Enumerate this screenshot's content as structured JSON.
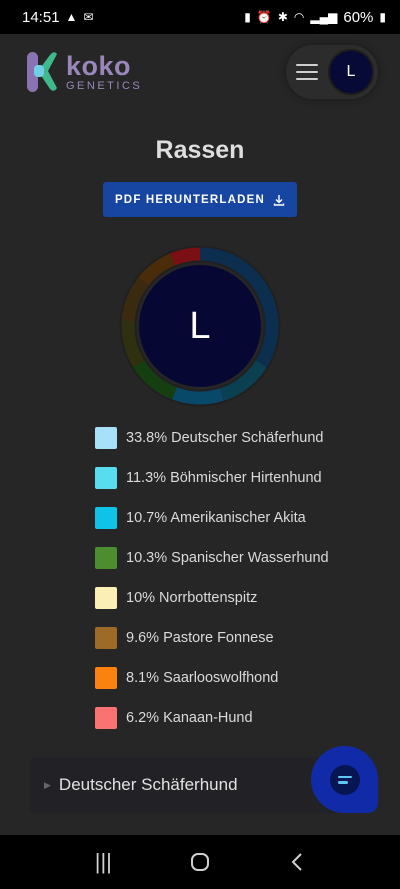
{
  "status_bar": {
    "time": "14:51",
    "battery": "60%",
    "left_icons": [
      "navigation-icon",
      "mail-icon"
    ],
    "right_icons": [
      "sim-icon",
      "alarm-icon",
      "bluetooth-icon",
      "wifi-icon",
      "signal-icon",
      "battery-icon"
    ]
  },
  "header": {
    "logo_word": "koko",
    "logo_sub": "GENETICS",
    "avatar_initial": "L",
    "menu_icon": "hamburger-menu-icon"
  },
  "page": {
    "title": "Rassen",
    "pdf_button_label": "PDF HERUNTERLADEN",
    "pdf_button_icon": "download-icon",
    "avatar_initial": "L"
  },
  "colors": {
    "accent_blue": "#1746a2",
    "avatar_bg": "#060833",
    "chat_fab": "#112ba8"
  },
  "breeds": [
    {
      "label": "33.8% Deutscher Schäferhund",
      "percent": 33.8,
      "color": "#a6e0f9",
      "ring_color": "#0c2e4f"
    },
    {
      "label": "11.3% Böhmischer Hirtenhund",
      "percent": 11.3,
      "color": "#58dcef",
      "ring_color": "#0b3f52"
    },
    {
      "label": "10.7% Amerikanischer Akita",
      "percent": 10.7,
      "color": "#0ec2e8",
      "ring_color": "#08496a"
    },
    {
      "label": "10.3% Spanischer Wasserhund",
      "percent": 10.3,
      "color": "#4b8d2f",
      "ring_color": "#153f10"
    },
    {
      "label": "10% Norrbottenspitz",
      "percent": 10,
      "color": "#fcefb4",
      "ring_color": "#2f3010"
    },
    {
      "label": "9.6% Pastore Fonnese",
      "percent": 9.6,
      "color": "#9e6a27",
      "ring_color": "#3a2a10"
    },
    {
      "label": "8.1% Saarlooswolfhond",
      "percent": 8.1,
      "color": "#fc8210",
      "ring_color": "#4a2b0a"
    },
    {
      "label": "6.2% Kanaan-Hund",
      "percent": 6.2,
      "color": "#fb7272",
      "ring_color": "#7a0f14"
    }
  ],
  "accordion": {
    "title": "Deutscher Schäferhund",
    "icon": "chevron-right-icon"
  },
  "chat_fab": {
    "icon": "chat-icon"
  },
  "navbar": {
    "recent_icon": "recent-apps-icon",
    "home_icon": "home-icon",
    "back_icon": "back-icon"
  }
}
